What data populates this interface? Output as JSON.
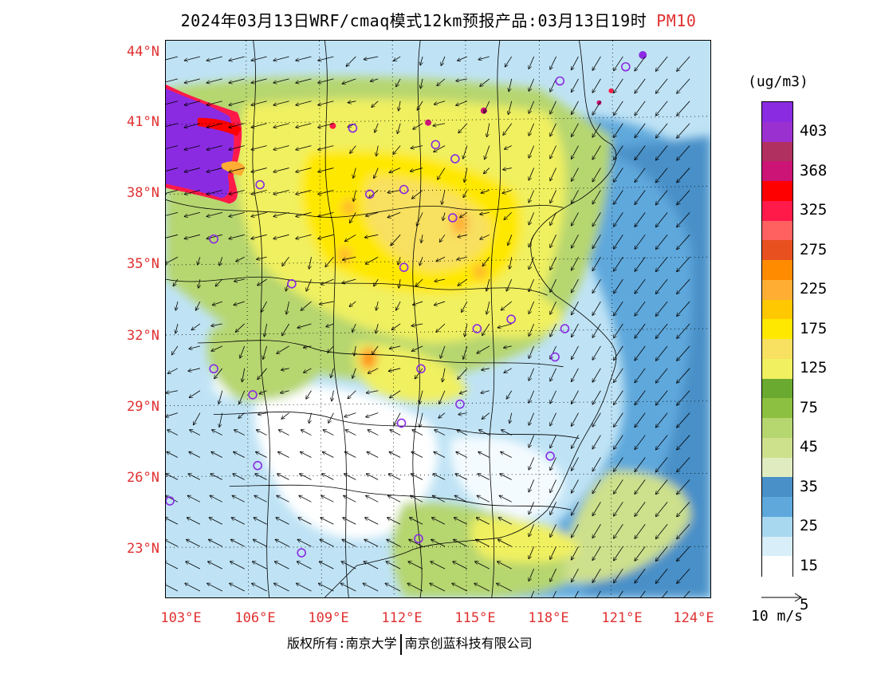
{
  "title": "2024年03月13日WRF/cmaq模式12km预报产品:03月13日19时",
  "variable": "PM10",
  "lat_labels": [
    "44°N",
    "41°N",
    "38°N",
    "35°N",
    "32°N",
    "29°N",
    "26°N",
    "23°N"
  ],
  "lon_labels": [
    "103°E",
    "106°E",
    "109°E",
    "112°E",
    "115°E",
    "118°E",
    "121°E",
    "124°E"
  ],
  "colorbar": {
    "unit": "(ug/m3)",
    "labels": [
      "403",
      "368",
      "325",
      "275",
      "225",
      "175",
      "125",
      "75",
      "45",
      "35",
      "25",
      "15",
      "5"
    ],
    "colors": [
      "#8a2be2",
      "#9b30d0",
      "#b03060",
      "#cc1477",
      "#ff0000",
      "#ff1a4a",
      "#ff6060",
      "#e85020",
      "#ff8c00",
      "#ffad33",
      "#ffc800",
      "#ffe800",
      "#f8e060",
      "#f0f060",
      "#6aaa30",
      "#8cc040",
      "#b6d670",
      "#cde08c",
      "#e0ecc0",
      "#4a90c8",
      "#5ea8dc",
      "#a8d8f0",
      "#d8eef8",
      "#ffffff"
    ]
  },
  "wind_reference": "10 m/s",
  "cities": [
    {
      "lon": 119.0,
      "lat": 42.8
    },
    {
      "lon": 110.5,
      "lat": 40.8
    },
    {
      "lon": 113.9,
      "lat": 40.1
    },
    {
      "lon": 114.7,
      "lat": 39.5
    },
    {
      "lon": 106.7,
      "lat": 38.4
    },
    {
      "lon": 111.2,
      "lat": 38.0
    },
    {
      "lon": 112.6,
      "lat": 38.2
    },
    {
      "lon": 114.6,
      "lat": 37.0
    },
    {
      "lon": 104.8,
      "lat": 36.1
    },
    {
      "lon": 112.6,
      "lat": 34.9
    },
    {
      "lon": 108.0,
      "lat": 34.2
    },
    {
      "lon": 115.6,
      "lat": 32.3
    },
    {
      "lon": 117.0,
      "lat": 32.7
    },
    {
      "lon": 119.2,
      "lat": 32.3
    },
    {
      "lon": 118.8,
      "lat": 31.1
    },
    {
      "lon": 104.8,
      "lat": 30.6
    },
    {
      "lon": 113.3,
      "lat": 30.6
    },
    {
      "lon": 106.4,
      "lat": 29.5
    },
    {
      "lon": 114.9,
      "lat": 29.1
    },
    {
      "lon": 112.5,
      "lat": 28.3
    },
    {
      "lon": 118.6,
      "lat": 26.9
    },
    {
      "lon": 106.6,
      "lat": 26.5
    },
    {
      "lon": 103.0,
      "lat": 25.0
    },
    {
      "lon": 113.2,
      "lat": 23.4
    },
    {
      "lon": 108.4,
      "lat": 22.8
    },
    {
      "lon": 121.7,
      "lat": 43.4
    }
  ],
  "copyright": {
    "left": "版权所有:南京大学",
    "right": "南京创蓝科技有限公司"
  }
}
